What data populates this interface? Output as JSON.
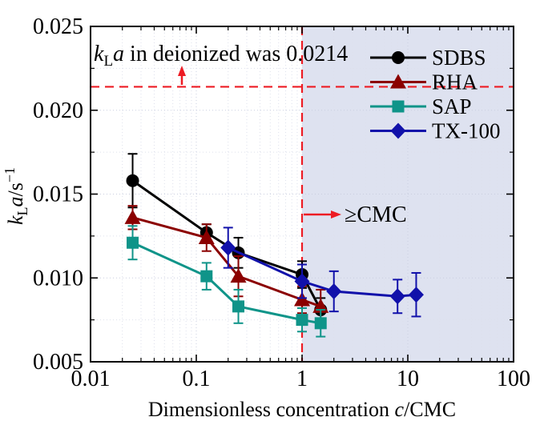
{
  "figure": {
    "background": "#ffffff",
    "frame_color": "#000000",
    "shaded_region_color": "#dee2f0",
    "grid_minor_color": "#dde0ec",
    "grid_major_color": "#c9cedf",
    "reference_color": "#ed1c24"
  },
  "chart_data": {
    "type": "line",
    "title": "",
    "xlabel": "Dimensionless concentration c/CMC",
    "xlabel_parts": {
      "prefix": "Dimensionless concentration ",
      "italic": "c",
      "suffix": "/CMC"
    },
    "ylabel": "kLa/s-1",
    "ylabel_parts": {
      "italic_k": "k",
      "sub": "L",
      "italic_a": "a",
      "unit": "/s",
      "sup": "−1"
    },
    "x_axis": {
      "scale": "log",
      "range": [
        0.01,
        100
      ],
      "tick_values": [
        0.01,
        0.1,
        1,
        10,
        100
      ],
      "tick_labels": [
        "0.01",
        "0.1",
        "1",
        "10",
        "100"
      ]
    },
    "y_axis": {
      "scale": "linear",
      "range": [
        0.005,
        0.025
      ],
      "tick_values": [
        0.005,
        0.01,
        0.015,
        0.02,
        0.025
      ],
      "tick_labels": [
        "0.005",
        "0.010",
        "0.015",
        "0.020",
        "0.025"
      ],
      "minor_tick_values": [
        0.0075,
        0.0125,
        0.0175,
        0.0225
      ]
    },
    "grid": true,
    "legend_position": "top-right",
    "shaded_region": {
      "x_from": 1,
      "x_to": 100
    },
    "reference_lines": [
      {
        "axis": "y",
        "value": 0.0214,
        "style": "dashed"
      },
      {
        "axis": "x",
        "value": 1,
        "style": "dashed"
      }
    ],
    "annotations": [
      {
        "id": "deionized-note",
        "parts": {
          "italic_k": "k",
          "sub": "L",
          "italic_a": "a",
          "rest": " in deionized was 0.0214"
        }
      },
      {
        "id": "cmc-note",
        "text": "≥CMC"
      }
    ],
    "series": [
      {
        "name": "SDBS",
        "color": "#000000",
        "marker": "circle",
        "x": [
          0.025,
          0.125,
          0.25,
          1,
          1.5
        ],
        "y": [
          0.0158,
          0.0127,
          0.0115,
          0.0102,
          0.0081
        ],
        "yerr": [
          0.0016,
          0.0005,
          0.0009,
          0.0008,
          0.0007
        ]
      },
      {
        "name": "RHA",
        "color": "#8b0000",
        "marker": "triangle",
        "x": [
          0.025,
          0.125,
          0.25,
          1,
          1.5
        ],
        "y": [
          0.0136,
          0.0124,
          0.0101,
          0.0087,
          0.0083
        ],
        "yerr": [
          0.0007,
          0.0008,
          0.0012,
          0.0008,
          0.001
        ]
      },
      {
        "name": "SAP",
        "color": "#0f9489",
        "marker": "square",
        "x": [
          0.025,
          0.125,
          0.25,
          1,
          1.5
        ],
        "y": [
          0.0121,
          0.0101,
          0.0083,
          0.0075,
          0.0073
        ],
        "yerr": [
          0.001,
          0.0008,
          0.001,
          0.0007,
          0.0008
        ]
      },
      {
        "name": "TX-100",
        "color": "#1111aa",
        "marker": "diamond",
        "x": [
          0.2,
          1,
          2,
          8,
          12
        ],
        "y": [
          0.0118,
          0.0098,
          0.0092,
          0.0089,
          0.009
        ],
        "yerr": [
          0.0012,
          0.001,
          0.0012,
          0.001,
          0.0013
        ]
      }
    ],
    "legend_entries": [
      "SDBS",
      "RHA",
      "SAP",
      "TX-100"
    ]
  }
}
